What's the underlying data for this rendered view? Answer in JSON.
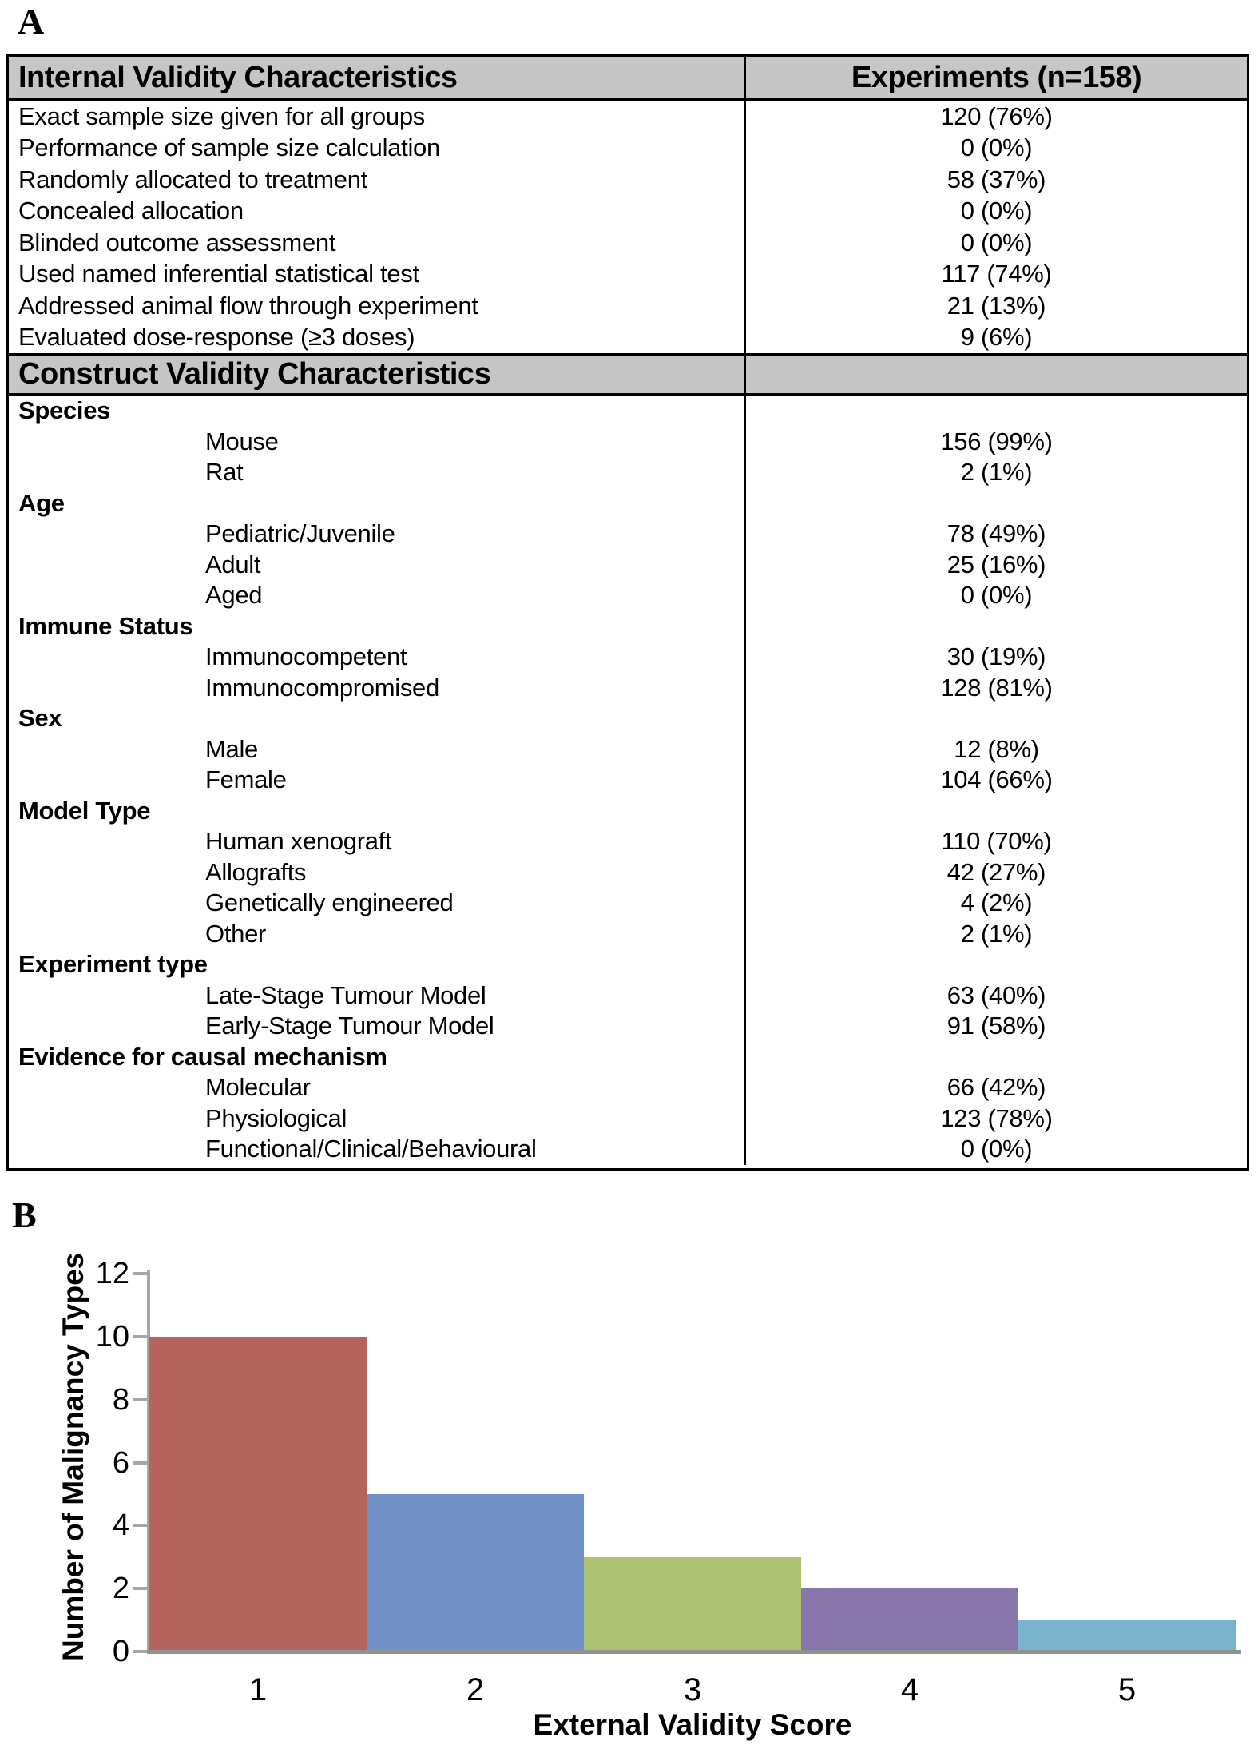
{
  "panels": {
    "a_label": "A",
    "b_label": "B"
  },
  "table": {
    "columns": [
      "Internal Validity Characteristics",
      "Experiments (n=158)"
    ],
    "internal_validity_rows": [
      {
        "label": "Exact sample size given for all groups",
        "value": "120 (76%)"
      },
      {
        "label": "Performance of sample size calculation",
        "value": "0 (0%)"
      },
      {
        "label": "Randomly allocated to treatment",
        "value": "58 (37%)"
      },
      {
        "label": "Concealed allocation",
        "value": "0 (0%)"
      },
      {
        "label": "Blinded outcome assessment",
        "value": "0 (0%)"
      },
      {
        "label": "Used named inferential statistical test",
        "value": "117 (74%)"
      },
      {
        "label": "Addressed animal flow through experiment",
        "value": "21 (13%)"
      },
      {
        "label": "Evaluated dose-response (≥3 doses)",
        "value": "9 (6%)"
      }
    ],
    "construct_validity_header": "Construct Validity Characteristics",
    "construct_validity_rows": [
      {
        "label": "Species",
        "type": "category",
        "value": ""
      },
      {
        "label": "Mouse",
        "type": "item",
        "value": "156 (99%)"
      },
      {
        "label": "Rat",
        "type": "item",
        "value": "2 (1%)"
      },
      {
        "label": "Age",
        "type": "category",
        "value": ""
      },
      {
        "label": "Pediatric/Juvenile",
        "type": "item",
        "value": "78 (49%)"
      },
      {
        "label": "Adult",
        "type": "item",
        "value": "25 (16%)"
      },
      {
        "label": "Aged",
        "type": "item",
        "value": "0 (0%)"
      },
      {
        "label": "Immune Status",
        "type": "category",
        "value": ""
      },
      {
        "label": "Immunocompetent",
        "type": "item",
        "value": "30 (19%)"
      },
      {
        "label": "Immunocompromised",
        "type": "item",
        "value": "128 (81%)"
      },
      {
        "label": "Sex",
        "type": "category",
        "value": ""
      },
      {
        "label": "Male",
        "type": "item",
        "value": "12 (8%)"
      },
      {
        "label": "Female",
        "type": "item",
        "value": "104 (66%)"
      },
      {
        "label": "Model Type",
        "type": "category",
        "value": ""
      },
      {
        "label": "Human xenograft",
        "type": "item",
        "value": "110 (70%)"
      },
      {
        "label": "Allografts",
        "type": "item",
        "value": "42 (27%)"
      },
      {
        "label": "Genetically engineered",
        "type": "item",
        "value": "4 (2%)"
      },
      {
        "label": "Other",
        "type": "item",
        "value": "2 (1%)"
      },
      {
        "label": "Experiment type",
        "type": "category",
        "value": ""
      },
      {
        "label": "Late-Stage Tumour Model",
        "type": "item",
        "value": "63 (40%)"
      },
      {
        "label": "Early-Stage Tumour Model",
        "type": "item",
        "value": "91 (58%)"
      },
      {
        "label": "Evidence for causal mechanism",
        "type": "category",
        "value": ""
      },
      {
        "label": "Molecular",
        "type": "item",
        "value": "66 (42%)"
      },
      {
        "label": "Physiological",
        "type": "item",
        "value": "123 (78%)"
      },
      {
        "label": "Functional/Clinical/Behavioural",
        "type": "item",
        "value": "0 (0%)"
      }
    ]
  },
  "chart_data": {
    "type": "bar",
    "title": "",
    "categories": [
      "1",
      "2",
      "3",
      "4",
      "5"
    ],
    "values": [
      10,
      5,
      3,
      2,
      1
    ],
    "bar_colors": [
      "#b4635e",
      "#7191c7",
      "#adc172",
      "#8875ac",
      "#7cb3cc"
    ],
    "xlabel": "External Validity Score",
    "ylabel": "Number of Malignancy Types",
    "ylim": [
      0,
      12
    ],
    "yticks": [
      0,
      2,
      4,
      6,
      8,
      10,
      12
    ],
    "grid": false,
    "legend": false
  },
  "colors": {
    "section_header_bg": "#c6c6c6",
    "table_border": "#000000",
    "axis_line": "#a6a6a6",
    "baseline": "#919191",
    "text": "#000000"
  }
}
